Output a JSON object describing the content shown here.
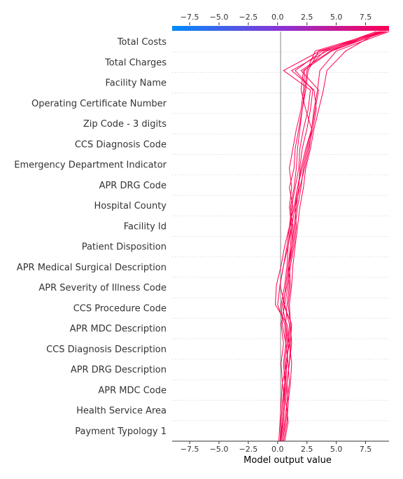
{
  "chart_data": {
    "type": "line",
    "title": "",
    "xlabel": "Model output value",
    "xlim": [
      -9.0,
      9.5
    ],
    "base_value": 0.25,
    "xticks": [
      -7.5,
      -5.0,
      -2.5,
      0.0,
      2.5,
      5.0,
      7.5
    ],
    "xtick_labels": [
      "−7.5",
      "−5.0",
      "−2.5",
      "0.0",
      "2.5",
      "5.0",
      "7.5"
    ],
    "colorbar": {
      "low_color": "#008bfb",
      "high_color": "#ff0052"
    },
    "features": [
      "Total Costs",
      "Total Charges",
      "Facility Name",
      "Operating Certificate Number",
      "Zip Code - 3 digits",
      "CCS Diagnosis Code",
      "Emergency Department Indicator",
      "APR DRG Code",
      "Hospital County",
      "Facility Id",
      "Patient Disposition",
      "APR Medical Surgical Description",
      "APR Severity of Illness Code",
      "CCS Procedure Code",
      "APR MDC Description",
      "CCS Diagnosis Description",
      "APR DRG Description",
      "APR MDC Code",
      "Health Service Area",
      "Payment Typology 1"
    ],
    "series": [
      {
        "values": [
          0.2,
          0.5,
          0.6,
          0.4,
          0.8,
          0.9,
          0.7,
          0.8,
          1.0,
          0.9,
          1.1,
          1.2,
          1.0,
          1.2,
          1.0,
          1.3,
          1.6,
          2.0,
          2.2,
          2.3,
          4.0,
          8.9
        ]
      },
      {
        "values": [
          0.3,
          0.4,
          0.5,
          0.6,
          0.5,
          0.7,
          0.4,
          0.3,
          0.6,
          0.8,
          0.9,
          1.1,
          1.3,
          1.0,
          1.4,
          1.5,
          1.8,
          2.1,
          2.4,
          2.6,
          3.5,
          9.2
        ]
      },
      {
        "values": [
          0.4,
          0.6,
          0.8,
          1.0,
          0.9,
          0.7,
          0.6,
          0.0,
          0.2,
          0.5,
          0.9,
          1.2,
          1.5,
          1.7,
          2.0,
          2.4,
          2.9,
          3.2,
          3.5,
          2.0,
          4.5,
          8.6
        ]
      },
      {
        "values": [
          0.2,
          0.3,
          0.4,
          0.6,
          0.7,
          1.0,
          0.8,
          -0.2,
          -0.1,
          0.3,
          0.6,
          1.0,
          1.4,
          1.7,
          2.1,
          2.5,
          2.9,
          3.1,
          3.4,
          3.6,
          5.0,
          9.5
        ]
      },
      {
        "values": [
          0.5,
          0.8,
          0.9,
          1.1,
          1.2,
          1.0,
          1.1,
          0.9,
          1.1,
          1.0,
          1.2,
          1.3,
          1.1,
          1.4,
          1.6,
          1.7,
          1.9,
          2.1,
          2.3,
          2.5,
          3.2,
          8.8
        ]
      },
      {
        "values": [
          0.1,
          0.2,
          0.3,
          0.4,
          0.3,
          0.5,
          0.3,
          0.6,
          0.2,
          0.5,
          0.8,
          1.0,
          1.2,
          1.5,
          1.8,
          1.9,
          2.2,
          2.6,
          2.8,
          0.5,
          3.6,
          9.0
        ]
      },
      {
        "values": [
          0.6,
          0.9,
          0.7,
          0.8,
          1.0,
          1.1,
          1.2,
          0.5,
          0.7,
          0.9,
          1.2,
          1.4,
          1.6,
          1.8,
          1.9,
          2.1,
          2.5,
          2.8,
          3.0,
          1.5,
          3.8,
          8.4
        ]
      },
      {
        "values": [
          0.3,
          0.5,
          0.6,
          0.7,
          0.6,
          0.8,
          0.7,
          0.4,
          0.8,
          1.0,
          1.3,
          1.5,
          1.7,
          2.0,
          2.2,
          2.6,
          3.0,
          3.3,
          3.1,
          1.2,
          4.2,
          9.3
        ]
      },
      {
        "values": [
          0.2,
          0.4,
          0.5,
          0.7,
          0.8,
          0.9,
          1.0,
          0.6,
          0.9,
          1.1,
          1.4,
          1.6,
          1.5,
          1.9,
          2.3,
          2.7,
          2.9,
          2.4,
          2.0,
          2.2,
          4.6,
          9.1
        ]
      },
      {
        "values": [
          0.4,
          0.7,
          0.9,
          0.8,
          1.0,
          1.2,
          1.1,
          1.0,
          1.2,
          1.3,
          1.5,
          1.7,
          1.9,
          2.2,
          2.4,
          2.8,
          3.1,
          3.5,
          3.9,
          4.2,
          5.8,
          8.7
        ]
      }
    ]
  }
}
